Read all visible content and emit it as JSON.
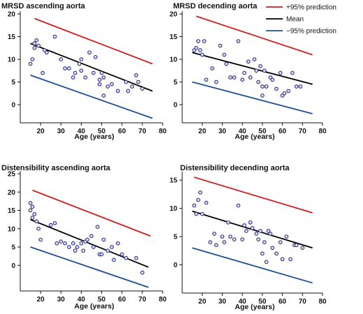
{
  "legend": [
    {
      "label": "+95% prediction",
      "color": "#d11f1f"
    },
    {
      "label": "Mean",
      "color": "#000000"
    },
    {
      "label": "−95% prediction",
      "color": "#1c4e96"
    }
  ],
  "chart_data": [
    {
      "type": "scatter",
      "title": "MRSD ascending aorta",
      "xlabel": "Age (years)",
      "xlim": [
        10,
        80
      ],
      "ylim": [
        -4,
        20
      ],
      "xticks": [
        20,
        30,
        40,
        50,
        60,
        70,
        80
      ],
      "yticks": [
        0,
        5,
        10,
        15,
        20
      ],
      "points": [
        [
          15,
          9
        ],
        [
          16,
          10
        ],
        [
          17,
          12.5
        ],
        [
          17,
          13.5
        ],
        [
          18,
          14.2
        ],
        [
          19,
          13
        ],
        [
          21,
          7
        ],
        [
          22,
          12
        ],
        [
          23,
          11.5
        ],
        [
          27,
          15
        ],
        [
          30,
          10
        ],
        [
          32,
          8
        ],
        [
          34,
          8
        ],
        [
          36,
          6
        ],
        [
          37,
          7
        ],
        [
          39,
          9
        ],
        [
          40,
          10
        ],
        [
          40,
          7.5
        ],
        [
          42,
          6
        ],
        [
          44,
          11.5
        ],
        [
          46,
          7
        ],
        [
          47,
          10.5
        ],
        [
          49,
          5.5
        ],
        [
          49,
          4.5
        ],
        [
          50,
          7
        ],
        [
          51,
          2
        ],
        [
          51,
          6
        ],
        [
          53,
          4
        ],
        [
          55,
          4.5
        ],
        [
          58,
          3
        ],
        [
          62,
          5
        ],
        [
          63,
          3
        ],
        [
          65,
          4
        ],
        [
          67,
          6.5
        ],
        [
          68,
          5
        ],
        [
          70,
          3.5
        ]
      ],
      "lines": {
        "upper": [
          [
            17,
            19
          ],
          [
            75,
            9
          ]
        ],
        "mean": [
          [
            15,
            13.5
          ],
          [
            75,
            3
          ]
        ],
        "lower": [
          [
            15,
            6.5
          ],
          [
            75,
            -3
          ]
        ]
      }
    },
    {
      "type": "scatter",
      "title": "MRSD decending aorta",
      "xlabel": "Age (years)",
      "xlim": [
        10,
        80
      ],
      "ylim": [
        -4,
        20
      ],
      "xticks": [
        20,
        30,
        40,
        50,
        60,
        70,
        80
      ],
      "yticks": [
        0,
        5,
        10,
        15,
        20
      ],
      "points": [
        [
          16,
          12
        ],
        [
          17,
          12.5
        ],
        [
          18,
          14
        ],
        [
          19,
          12
        ],
        [
          20,
          11
        ],
        [
          21,
          14
        ],
        [
          22,
          5.5
        ],
        [
          25,
          8
        ],
        [
          27,
          5
        ],
        [
          29,
          13
        ],
        [
          31,
          11
        ],
        [
          32,
          9
        ],
        [
          34,
          6
        ],
        [
          36,
          6
        ],
        [
          38,
          14
        ],
        [
          40,
          5.5
        ],
        [
          41,
          7
        ],
        [
          43,
          9.5
        ],
        [
          44,
          6
        ],
        [
          46,
          10
        ],
        [
          47,
          7.5
        ],
        [
          48,
          5
        ],
        [
          49,
          8.5
        ],
        [
          50,
          2
        ],
        [
          50,
          4
        ],
        [
          51,
          7.5
        ],
        [
          52,
          4
        ],
        [
          54,
          6
        ],
        [
          55,
          5.5
        ],
        [
          57,
          3.5
        ],
        [
          59,
          7
        ],
        [
          60,
          2
        ],
        [
          61,
          2.5
        ],
        [
          63,
          3
        ],
        [
          65,
          7
        ],
        [
          67,
          4
        ],
        [
          69,
          4
        ]
      ],
      "lines": {
        "upper": [
          [
            17,
            19.5
          ],
          [
            75,
            11
          ]
        ],
        "mean": [
          [
            15,
            11.5
          ],
          [
            75,
            4.5
          ]
        ],
        "lower": [
          [
            15,
            5
          ],
          [
            75,
            -2
          ]
        ]
      }
    },
    {
      "type": "scatter",
      "title": "Distensibility ascending aorta",
      "xlabel": "Age (years)",
      "xlim": [
        10,
        80
      ],
      "ylim": [
        -7,
        25
      ],
      "xticks": [
        20,
        30,
        40,
        50,
        60,
        70,
        80
      ],
      "yticks": [
        0,
        5,
        10,
        15,
        20,
        25
      ],
      "points": [
        [
          15,
          17
        ],
        [
          15,
          15
        ],
        [
          16,
          16
        ],
        [
          16,
          13
        ],
        [
          17,
          14
        ],
        [
          18,
          12
        ],
        [
          19,
          10
        ],
        [
          20,
          7
        ],
        [
          25,
          11
        ],
        [
          27,
          11.5
        ],
        [
          28,
          6
        ],
        [
          30,
          6.5
        ],
        [
          32,
          6
        ],
        [
          34,
          5
        ],
        [
          36,
          6
        ],
        [
          37,
          4
        ],
        [
          38,
          5
        ],
        [
          40,
          6
        ],
        [
          41,
          4
        ],
        [
          42,
          6.5
        ],
        [
          43,
          7
        ],
        [
          45,
          8
        ],
        [
          46,
          5
        ],
        [
          48,
          10.5
        ],
        [
          49,
          3
        ],
        [
          50,
          3
        ],
        [
          51,
          7
        ],
        [
          53,
          4
        ],
        [
          55,
          5
        ],
        [
          56,
          1.5
        ],
        [
          58,
          6
        ],
        [
          60,
          3
        ],
        [
          62,
          2
        ],
        [
          67,
          2
        ],
        [
          70,
          -2
        ]
      ],
      "lines": {
        "upper": [
          [
            16,
            20.5
          ],
          [
            74,
            8
          ]
        ],
        "mean": [
          [
            15,
            12.5
          ],
          [
            73,
            -0.5
          ]
        ],
        "lower": [
          [
            15,
            5
          ],
          [
            73,
            -6
          ]
        ]
      }
    },
    {
      "type": "scatter",
      "title": "Distensibility decending aorta",
      "xlabel": "Age (years)",
      "xlim": [
        10,
        80
      ],
      "ylim": [
        -5,
        16
      ],
      "xticks": [
        20,
        30,
        40,
        50,
        60,
        70,
        80
      ],
      "yticks": [
        0,
        5,
        10,
        15
      ],
      "points": [
        [
          16,
          10.5
        ],
        [
          17,
          9
        ],
        [
          18,
          11.5
        ],
        [
          19,
          12.8
        ],
        [
          20,
          9
        ],
        [
          22,
          11
        ],
        [
          24,
          4
        ],
        [
          26,
          5.5
        ],
        [
          27,
          3.5
        ],
        [
          30,
          5
        ],
        [
          31,
          4
        ],
        [
          33,
          7.5
        ],
        [
          34,
          5
        ],
        [
          36,
          4.5
        ],
        [
          38,
          10.5
        ],
        [
          40,
          4.5
        ],
        [
          41,
          7
        ],
        [
          42,
          6
        ],
        [
          44,
          7.5
        ],
        [
          45,
          6.5
        ],
        [
          47,
          5.5
        ],
        [
          48,
          4.5
        ],
        [
          49,
          6
        ],
        [
          50,
          2
        ],
        [
          51,
          4
        ],
        [
          52,
          0.5
        ],
        [
          53,
          6
        ],
        [
          54,
          5.5
        ],
        [
          55,
          3
        ],
        [
          57,
          2
        ],
        [
          59,
          4
        ],
        [
          60,
          1
        ],
        [
          62,
          5
        ],
        [
          64,
          1
        ],
        [
          66,
          3.5
        ],
        [
          67,
          3.5
        ],
        [
          70,
          3
        ]
      ],
      "lines": {
        "upper": [
          [
            16,
            15.5
          ],
          [
            75,
            9.2
          ]
        ],
        "mean": [
          [
            15,
            9.5
          ],
          [
            75,
            3
          ]
        ],
        "lower": [
          [
            15,
            3
          ],
          [
            75,
            -3.2
          ]
        ]
      }
    }
  ]
}
